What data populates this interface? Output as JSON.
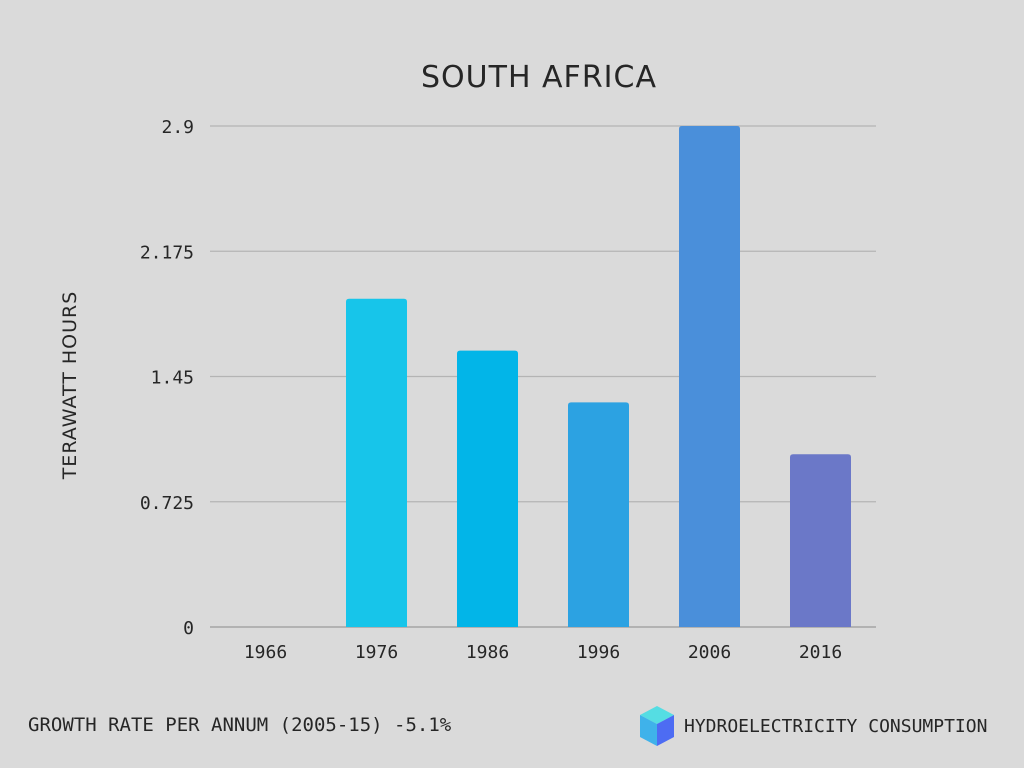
{
  "chart_data": {
    "type": "bar",
    "title": "SOUTH AFRICA",
    "ylabel": "TERAWATT  HOURS",
    "xlabel": "",
    "categories": [
      "1966",
      "1976",
      "1986",
      "1996",
      "2006",
      "2016"
    ],
    "values": [
      0,
      1.9,
      1.6,
      1.3,
      2.9,
      1.0
    ],
    "ylim": [
      0,
      2.9
    ],
    "yticks": [
      "0",
      "0.725",
      "1.45",
      "2.175",
      "2.9"
    ],
    "ytick_values": [
      0,
      0.725,
      1.45,
      2.175,
      2.9
    ],
    "grid": true,
    "bar_colors": [
      "#17c5ea",
      "#17c5ea",
      "#02b5e8",
      "#2ca2e2",
      "#4a8fda",
      "#6b78c8"
    ]
  },
  "footer": {
    "growth_rate": "GROWTH RATE PER ANNUM (2005-15) -5.1%",
    "brand": "HYDROELECTRICITY CONSUMPTION"
  },
  "logo": {
    "icon": "cube-icon",
    "colors": [
      "#55dde3",
      "#3fb2ea",
      "#4d6cf3"
    ]
  }
}
